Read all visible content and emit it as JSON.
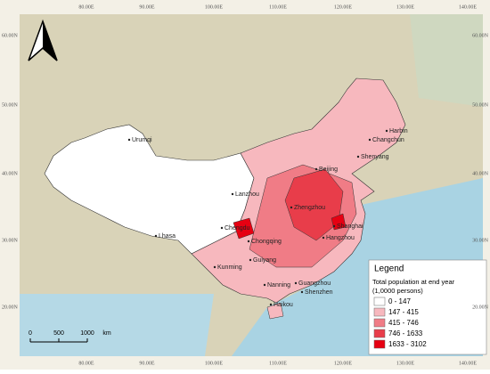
{
  "graticule": {
    "longitudes": [
      "80.00E",
      "90.00E",
      "100.00E",
      "110.00E",
      "120.00E",
      "130.00E",
      "140.00E"
    ],
    "latitudes": [
      "60.00N",
      "50.00N",
      "40.00N",
      "30.00N",
      "20.00N"
    ]
  },
  "cities": [
    "Urumqi",
    "Harbin",
    "Changchun",
    "Shenyang",
    "Beijing",
    "Lanzhou",
    "Zhengzhou",
    "Chengdu",
    "Chongqing",
    "Lhasa",
    "Shanghai",
    "Hangzhou",
    "Guiyang",
    "Kunming",
    "Nanning",
    "Guangzhou",
    "Shenzhen",
    "Haikou"
  ],
  "legend": {
    "title": "Legend",
    "subtitle": "Total population at end year",
    "unit": "(1,0000 persons)",
    "classes": [
      {
        "label": "0 - 147",
        "color": "#ffffff"
      },
      {
        "label": "147 - 415",
        "color": "#f7b8be"
      },
      {
        "label": "415 - 746",
        "color": "#f07c86"
      },
      {
        "label": "746 - 1633",
        "color": "#e83d4a"
      },
      {
        "label": "1633 - 3102",
        "color": "#e60012"
      }
    ]
  },
  "scale_bar": {
    "labels": [
      "0",
      "500",
      "1000",
      "km"
    ]
  }
}
